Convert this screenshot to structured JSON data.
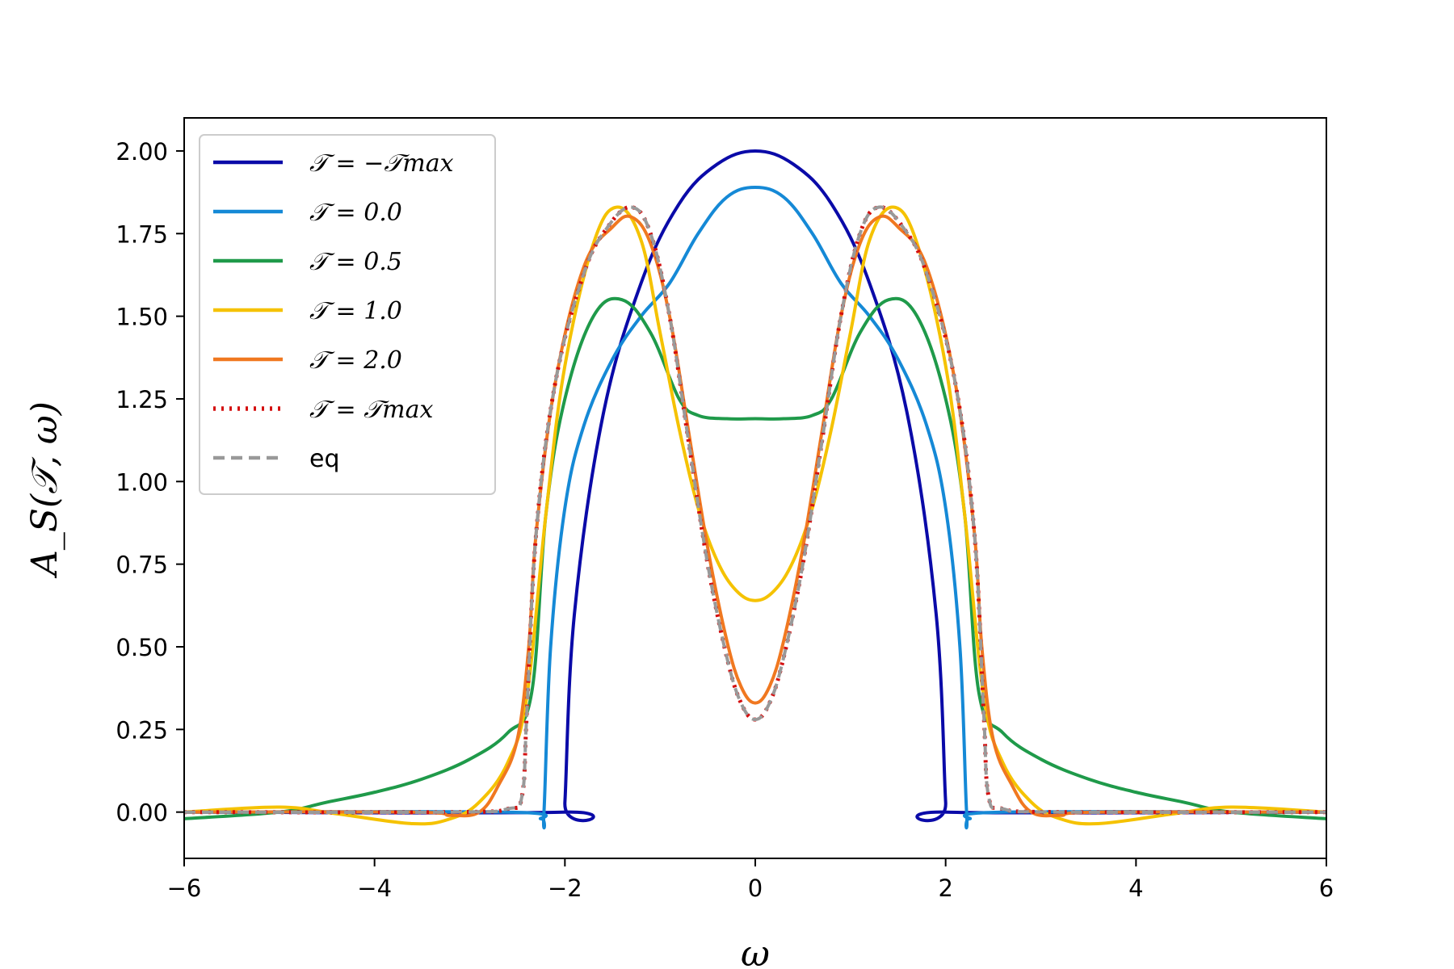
{
  "chart_data": {
    "type": "line",
    "xlabel": "ω",
    "ylabel": "A_S(𝒯, ω)",
    "xlim": [
      -6,
      6
    ],
    "ylim": [
      -0.14,
      2.1
    ],
    "xticks": [
      -6,
      -4,
      -2,
      0,
      2,
      4,
      6
    ],
    "xtick_labels": [
      "−6",
      "−4",
      "−2",
      "0",
      "2",
      "4",
      "6"
    ],
    "yticks": [
      0.0,
      0.25,
      0.5,
      0.75,
      1.0,
      1.25,
      1.5,
      1.75,
      2.0
    ],
    "ytick_labels": [
      "0.00",
      "0.25",
      "0.50",
      "0.75",
      "1.00",
      "1.25",
      "1.50",
      "1.75",
      "2.00"
    ],
    "grid": false,
    "legend_position": "top-left",
    "series": [
      {
        "name": "𝒯 = −𝒯max",
        "color": "#0a0aa8",
        "style": "solid",
        "x": [
          -6,
          -2.02,
          -2.0,
          -1.9,
          -1.6,
          -1.2,
          -0.8,
          -0.4,
          0,
          0.4,
          0.8,
          1.2,
          1.6,
          1.9,
          2.0,
          2.02,
          6
        ],
        "y": [
          0,
          0,
          0.03,
          0.6,
          1.2,
          1.6,
          1.84,
          1.96,
          2.0,
          1.96,
          1.84,
          1.6,
          1.2,
          0.6,
          0.03,
          0,
          0
        ]
      },
      {
        "name": "𝒯 = 0.0",
        "color": "#1589d6",
        "style": "solid",
        "x": [
          -6,
          -2.6,
          -2.25,
          -2.22,
          -2.15,
          -2.0,
          -1.8,
          -1.5,
          -1.2,
          -0.9,
          -0.6,
          -0.3,
          0,
          0.3,
          0.6,
          0.9,
          1.2,
          1.5,
          1.8,
          2.0,
          2.15,
          2.22,
          2.25,
          2.6,
          6
        ],
        "y": [
          0,
          0,
          -0.02,
          0,
          0.5,
          0.92,
          1.17,
          1.37,
          1.5,
          1.6,
          1.75,
          1.86,
          1.89,
          1.86,
          1.75,
          1.6,
          1.5,
          1.37,
          1.17,
          0.92,
          0.5,
          0,
          -0.02,
          0,
          0
        ]
      },
      {
        "name": "𝒯 = 0.5",
        "color": "#1f9a4a",
        "style": "solid",
        "x": [
          -6,
          -5.0,
          -4.5,
          -4.0,
          -3.5,
          -3.0,
          -2.6,
          -2.35,
          -2.2,
          -2.0,
          -1.7,
          -1.4,
          -1.1,
          -0.8,
          -0.6,
          -0.3,
          0,
          0.3,
          0.6,
          0.8,
          1.1,
          1.4,
          1.7,
          2.0,
          2.2,
          2.35,
          2.6,
          3.0,
          3.5,
          4.0,
          4.5,
          5.0,
          6
        ],
        "y": [
          -0.02,
          0.0,
          0.03,
          0.06,
          0.1,
          0.16,
          0.24,
          0.36,
          0.9,
          1.25,
          1.5,
          1.55,
          1.45,
          1.25,
          1.2,
          1.19,
          1.19,
          1.19,
          1.2,
          1.25,
          1.45,
          1.55,
          1.5,
          1.25,
          0.9,
          0.36,
          0.24,
          0.16,
          0.1,
          0.06,
          0.03,
          0.0,
          -0.02
        ]
      },
      {
        "name": "𝒯 = 1.0",
        "color": "#f5c200",
        "style": "solid",
        "x": [
          -6,
          -5.0,
          -4.4,
          -3.6,
          -3.2,
          -2.9,
          -2.6,
          -2.4,
          -2.2,
          -2.0,
          -1.7,
          -1.45,
          -1.2,
          -1.0,
          -0.8,
          -0.6,
          -0.4,
          -0.2,
          0,
          0.2,
          0.4,
          0.6,
          0.8,
          1.0,
          1.2,
          1.45,
          1.7,
          2.0,
          2.2,
          2.4,
          2.6,
          2.9,
          3.2,
          3.6,
          4.4,
          5.0,
          6
        ],
        "y": [
          0,
          0.015,
          -0.005,
          -0.035,
          -0.02,
          0.03,
          0.15,
          0.35,
          0.9,
          1.35,
          1.72,
          1.83,
          1.73,
          1.45,
          1.16,
          0.92,
          0.76,
          0.67,
          0.64,
          0.67,
          0.76,
          0.92,
          1.16,
          1.45,
          1.73,
          1.83,
          1.72,
          1.35,
          0.9,
          0.35,
          0.15,
          0.03,
          -0.02,
          -0.035,
          -0.005,
          0.015,
          0
        ]
      },
      {
        "name": "𝒯 = 2.0",
        "color": "#f07820",
        "style": "solid",
        "x": [
          -6,
          -3.6,
          -3.2,
          -2.9,
          -2.7,
          -2.5,
          -2.38,
          -2.3,
          -2.1,
          -1.8,
          -1.5,
          -1.3,
          -1.1,
          -0.9,
          -0.7,
          -0.5,
          -0.3,
          -0.15,
          0,
          0.15,
          0.3,
          0.5,
          0.7,
          0.9,
          1.1,
          1.3,
          1.5,
          1.8,
          2.1,
          2.3,
          2.38,
          2.5,
          2.7,
          2.9,
          3.2,
          3.6,
          6
        ],
        "y": [
          0,
          0.0,
          -0.01,
          0.0,
          0.08,
          0.22,
          0.5,
          0.85,
          1.3,
          1.65,
          1.77,
          1.8,
          1.72,
          1.5,
          1.15,
          0.8,
          0.52,
          0.38,
          0.33,
          0.38,
          0.52,
          0.8,
          1.15,
          1.5,
          1.72,
          1.8,
          1.77,
          1.65,
          1.3,
          0.85,
          0.5,
          0.22,
          0.08,
          0.0,
          -0.01,
          0.0,
          0
        ]
      },
      {
        "name": "𝒯 = 𝒯max",
        "color": "#d40f0f",
        "style": "dotted",
        "x": [
          -6,
          -3.2,
          -2.6,
          -2.45,
          -2.4,
          -2.3,
          -2.1,
          -1.8,
          -1.55,
          -1.3,
          -1.1,
          -0.9,
          -0.7,
          -0.5,
          -0.3,
          -0.15,
          0,
          0.15,
          0.3,
          0.5,
          0.7,
          0.9,
          1.1,
          1.3,
          1.55,
          1.8,
          2.1,
          2.3,
          2.4,
          2.45,
          2.6,
          3.2,
          6
        ],
        "y": [
          0,
          0,
          0.01,
          0.05,
          0.3,
          0.85,
          1.3,
          1.63,
          1.77,
          1.83,
          1.75,
          1.5,
          1.12,
          0.75,
          0.47,
          0.33,
          0.28,
          0.33,
          0.47,
          0.75,
          1.12,
          1.5,
          1.75,
          1.83,
          1.77,
          1.63,
          1.3,
          0.85,
          0.3,
          0.05,
          0.01,
          0,
          0
        ]
      },
      {
        "name": "eq",
        "color": "#999999",
        "style": "dashed",
        "x": [
          -6,
          -3.2,
          -2.6,
          -2.45,
          -2.4,
          -2.3,
          -2.1,
          -1.8,
          -1.55,
          -1.3,
          -1.1,
          -0.9,
          -0.7,
          -0.5,
          -0.3,
          -0.15,
          0,
          0.15,
          0.3,
          0.5,
          0.7,
          0.9,
          1.1,
          1.3,
          1.55,
          1.8,
          2.1,
          2.3,
          2.4,
          2.45,
          2.6,
          3.2,
          6
        ],
        "y": [
          0,
          0,
          0.01,
          0.05,
          0.3,
          0.85,
          1.3,
          1.63,
          1.77,
          1.83,
          1.75,
          1.5,
          1.12,
          0.75,
          0.47,
          0.33,
          0.28,
          0.33,
          0.47,
          0.75,
          1.12,
          1.5,
          1.75,
          1.83,
          1.77,
          1.63,
          1.3,
          0.85,
          0.3,
          0.05,
          0.01,
          0,
          0
        ]
      }
    ]
  }
}
